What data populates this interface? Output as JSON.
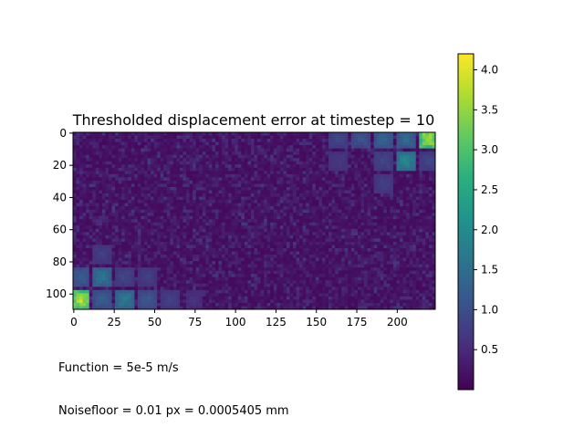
{
  "chart_data": {
    "type": "heatmap",
    "title": "Thresholded displacement error at timestep = 10",
    "xlabel": "",
    "ylabel": "",
    "x_range": [
      0,
      224
    ],
    "y_range": [
      0,
      110
    ],
    "x_ticks": [
      0,
      25,
      50,
      75,
      100,
      125,
      150,
      175,
      200
    ],
    "y_ticks": [
      0,
      20,
      40,
      60,
      80,
      100
    ],
    "y_axis_inverted": true,
    "grid": false,
    "colormap": "viridis",
    "colorbar": {
      "range": [
        0.0,
        4.2
      ],
      "ticks": [
        0.5,
        1.0,
        1.5,
        2.0,
        2.5,
        3.0,
        3.5,
        4.0
      ],
      "placement": "right"
    },
    "hotspots": [
      {
        "x": 5,
        "y": 104,
        "value": 4.2
      },
      {
        "x": 220,
        "y": 4,
        "value": 4.2
      },
      {
        "x": 18,
        "y": 90,
        "value": 1.8
      },
      {
        "x": 32,
        "y": 104,
        "value": 1.9
      },
      {
        "x": 18,
        "y": 104,
        "value": 1.4
      },
      {
        "x": 5,
        "y": 90,
        "value": 1.4
      },
      {
        "x": 46,
        "y": 104,
        "value": 1.3
      },
      {
        "x": 206,
        "y": 18,
        "value": 2.2
      },
      {
        "x": 206,
        "y": 4,
        "value": 1.6
      },
      {
        "x": 192,
        "y": 4,
        "value": 1.5
      },
      {
        "x": 178,
        "y": 4,
        "value": 1.2
      },
      {
        "x": 164,
        "y": 4,
        "value": 1.0
      },
      {
        "x": 220,
        "y": 18,
        "value": 1.0
      },
      {
        "x": 192,
        "y": 18,
        "value": 1.0
      },
      {
        "x": 192,
        "y": 32,
        "value": 0.9
      },
      {
        "x": 60,
        "y": 104,
        "value": 0.9
      },
      {
        "x": 32,
        "y": 90,
        "value": 1.0
      },
      {
        "x": 46,
        "y": 90,
        "value": 0.9
      },
      {
        "x": 18,
        "y": 76,
        "value": 0.9
      },
      {
        "x": 164,
        "y": 18,
        "value": 0.8
      },
      {
        "x": 75,
        "y": 104,
        "value": 0.7
      }
    ]
  },
  "annotations": {
    "function": "Function = 5e-5 m/s",
    "noisefloor": "Noisefloor = 0.01 px = 0.0005405 mm"
  },
  "colors": {
    "viridis_low": "#440154",
    "viridis_high": "#fde725"
  }
}
